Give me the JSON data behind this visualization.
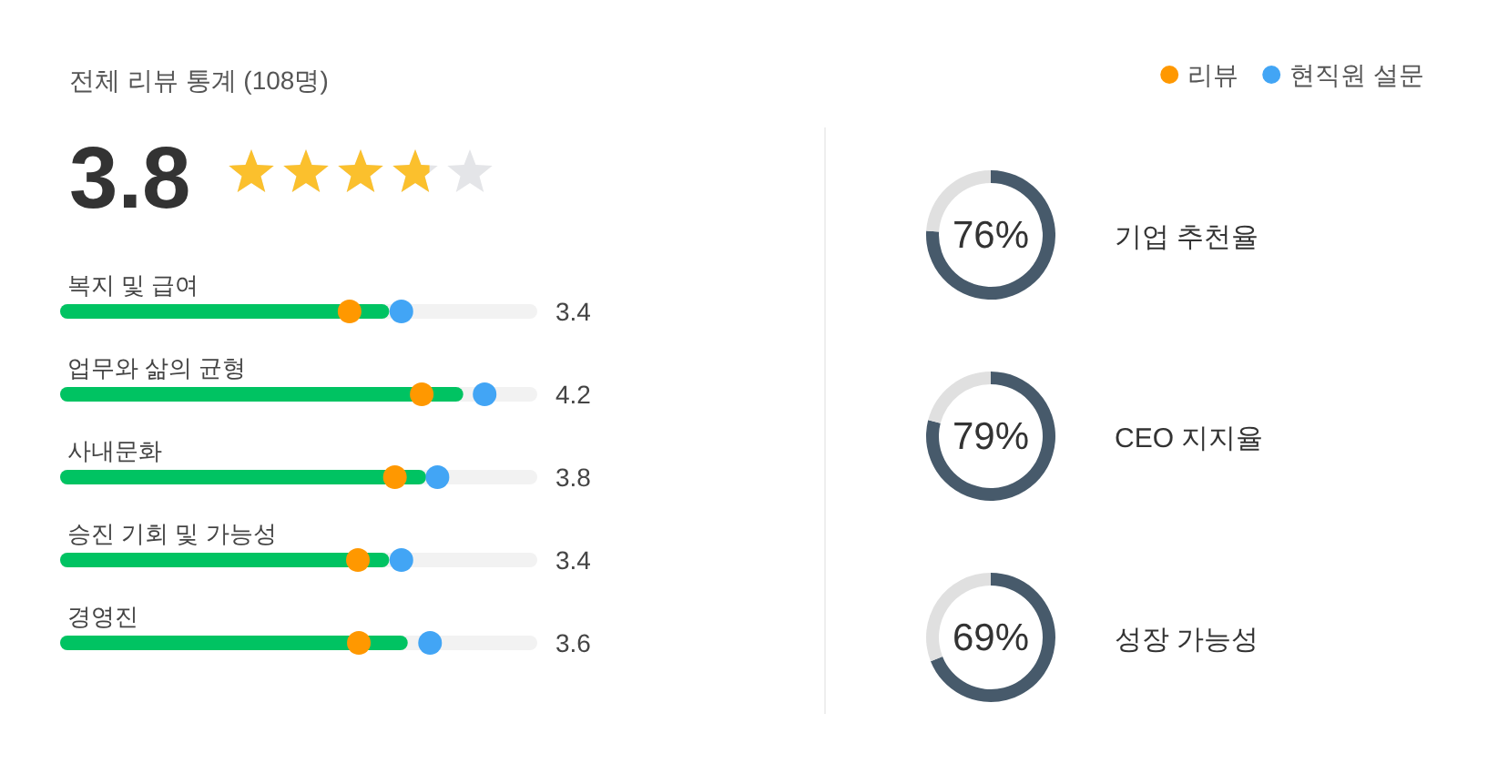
{
  "chart_data": [
    {
      "type": "other",
      "title": "전체 리뷰 통계 (108명)",
      "annotations": [
        "3.8"
      ]
    },
    {
      "type": "bar",
      "orientation": "horizontal",
      "categories": [
        "복지 및 급여",
        "업무와 삶의 균형",
        "사내문화",
        "승진 기회 및 가능성",
        "경영진"
      ],
      "xlim": [
        0,
        5
      ],
      "tick_labels": "y",
      "legend": "top right",
      "series": [
        {
          "color": "#00c362",
          "values": [
            3.4,
            4.2,
            3.8,
            3.4,
            3.6
          ],
          "value_labels": [
            "3.4",
            "4.2",
            "3.8",
            "3.4",
            "3.6"
          ]
        },
        {
          "name": "리뷰",
          "type": "scatter",
          "color": "#ff9800",
          "values": [
            3.05,
            3.83,
            3.54,
            3.14,
            3.15
          ]
        },
        {
          "name": "현직원 설문",
          "type": "scatter",
          "color": "#42a5f5",
          "values": [
            3.61,
            4.51,
            4.0,
            3.61,
            3.92
          ]
        }
      ]
    },
    {
      "type": "donut",
      "title": "기업 추천율",
      "categories": [
        null,
        null
      ],
      "values": [
        76,
        24
      ],
      "colors": [
        "#475a6b",
        "#e0e0e0"
      ],
      "value_labels": [
        "76%",
        null
      ]
    },
    {
      "type": "donut",
      "title": "CEO 지지율",
      "categories": [
        null,
        null
      ],
      "values": [
        79,
        21
      ],
      "colors": [
        "#475a6b",
        "#e0e0e0"
      ],
      "value_labels": [
        "79%",
        null
      ]
    },
    {
      "type": "donut",
      "title": "성장 가능성",
      "categories": [
        null,
        null
      ],
      "values": [
        69,
        31
      ],
      "colors": [
        "#475a6b",
        "#e0e0e0"
      ],
      "value_labels": [
        "69%",
        null
      ]
    }
  ]
}
